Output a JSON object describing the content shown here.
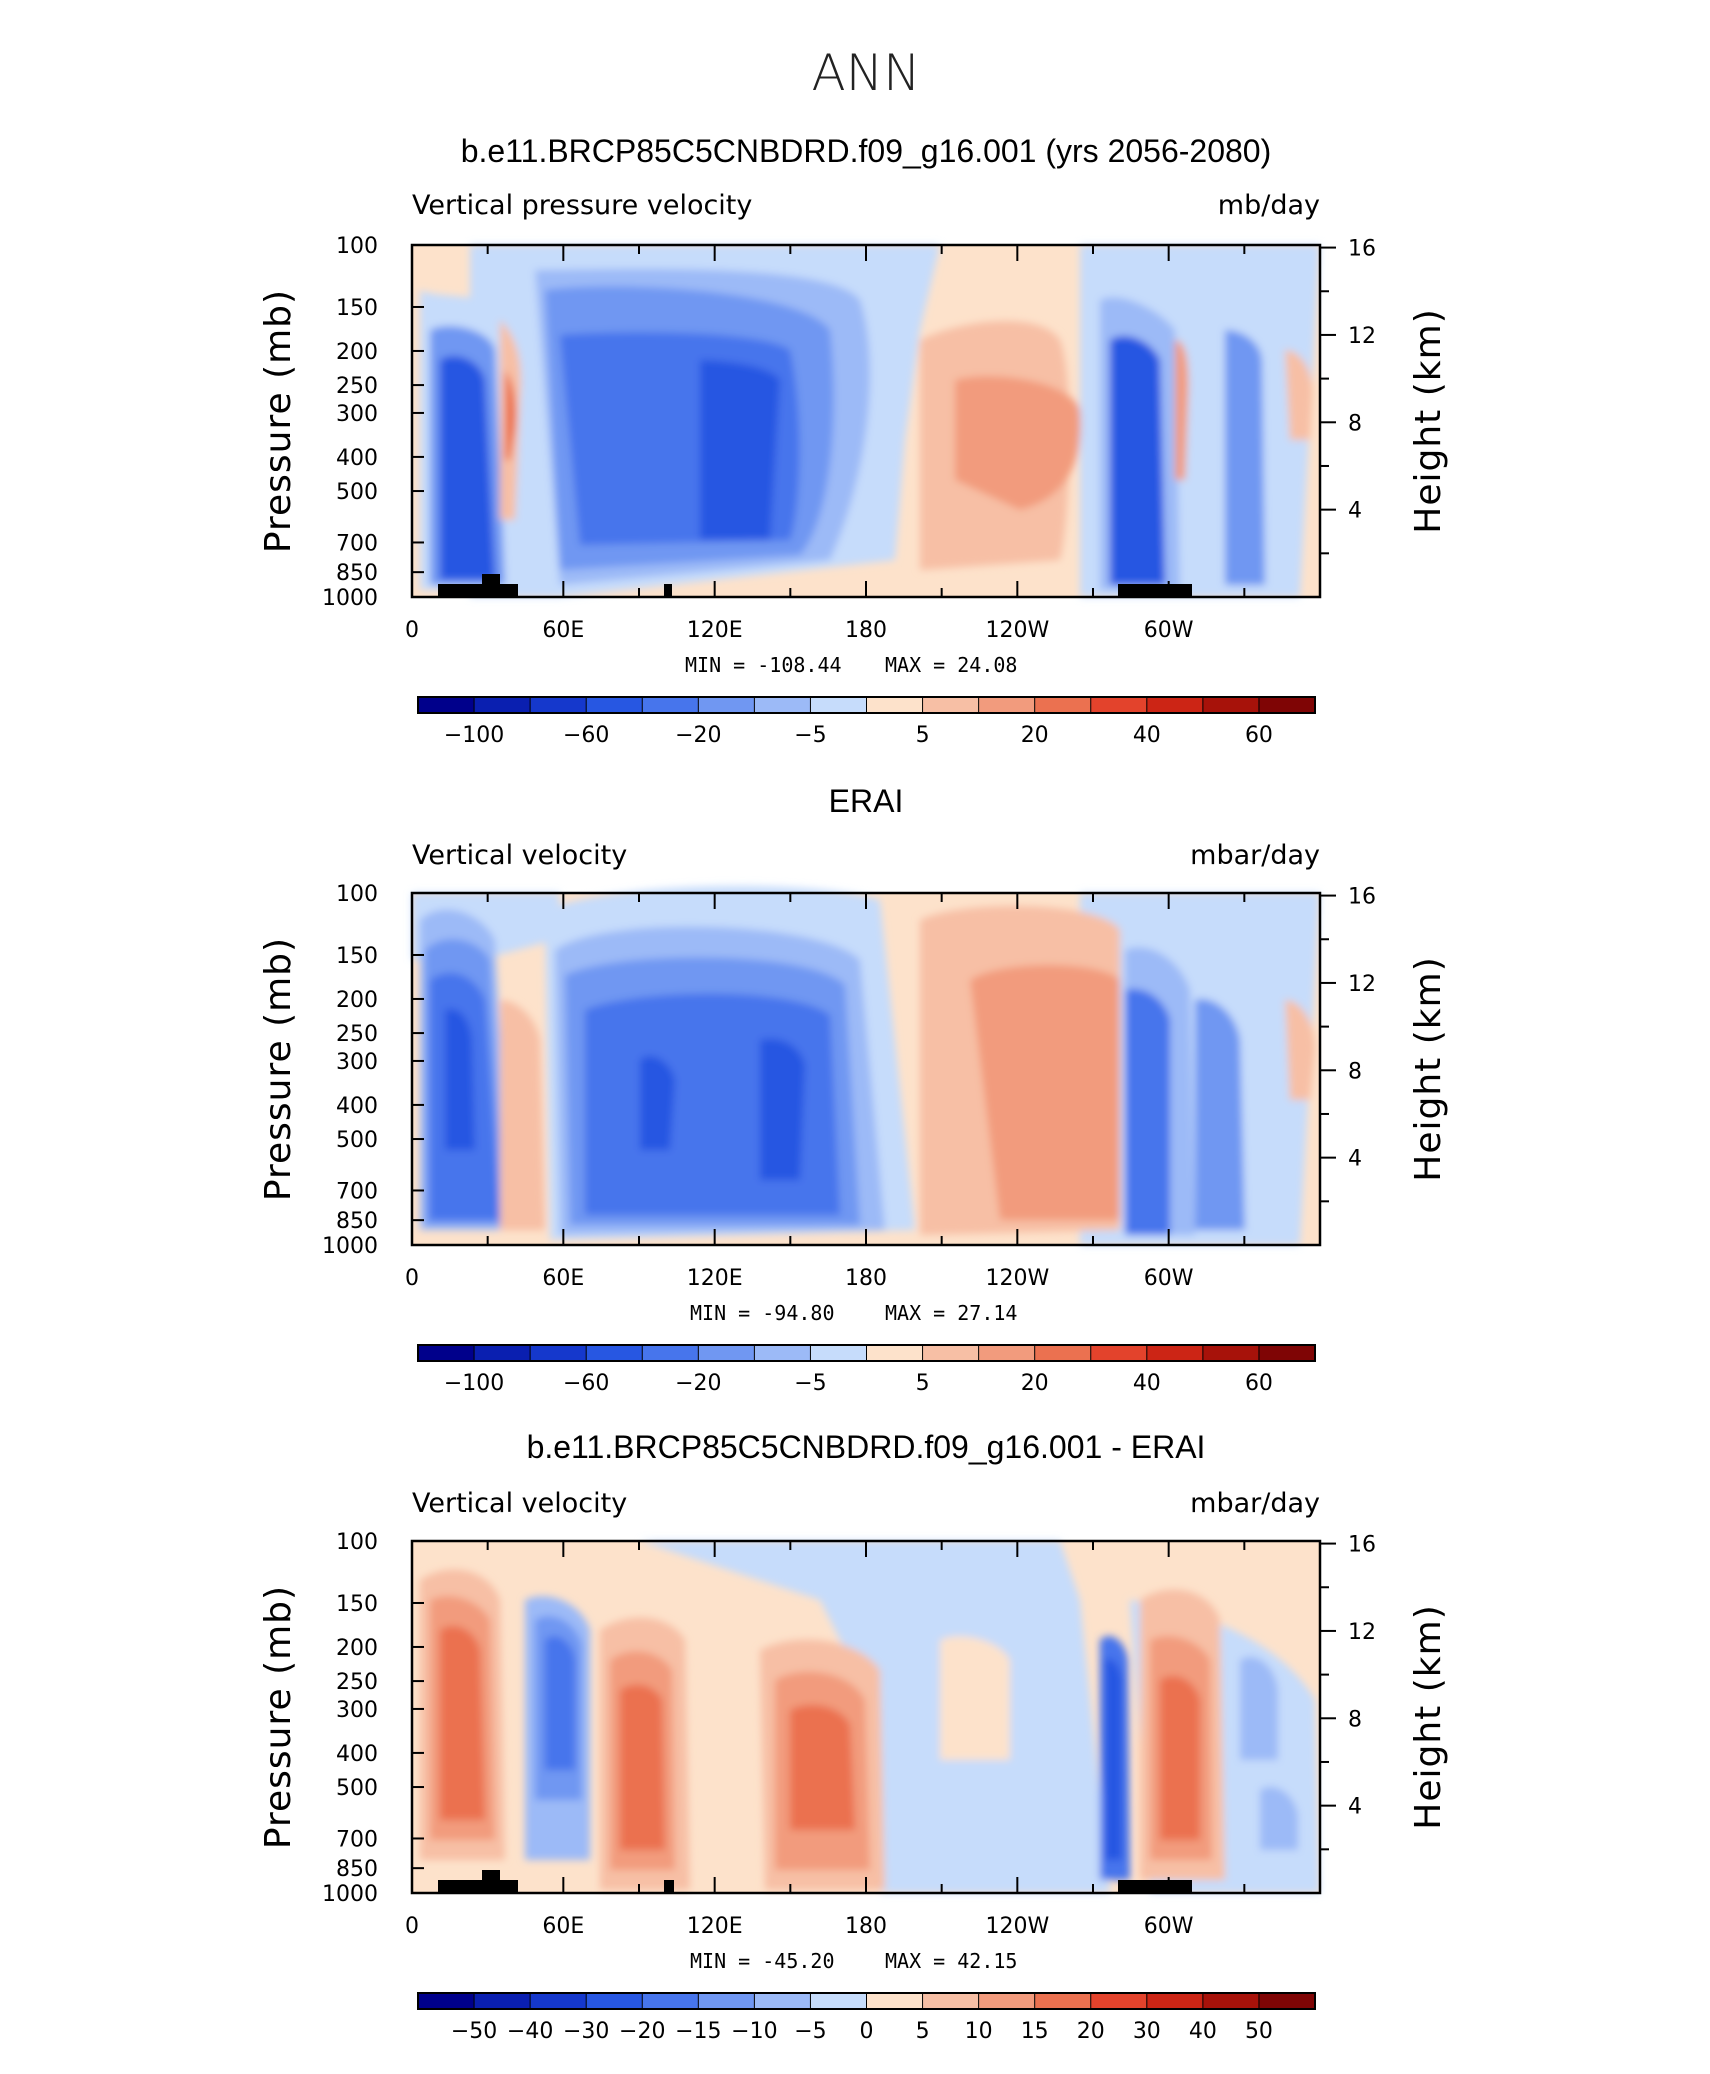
{
  "figure_title": "ANN",
  "chart_data": [
    {
      "type": "heatmap",
      "title": "b.e11.BRCP85C5CNBDRD.f09_g16.001 (yrs 2056-2080)",
      "left_label": "Vertical pressure velocity",
      "right_label": "mb/day",
      "xlabel": "",
      "ylabel": "Pressure (mb)",
      "ylabel_right": "Height (km)",
      "x_ticks": [
        "0",
        "60E",
        "120E",
        "180",
        "120W",
        "60W"
      ],
      "y_ticks": [
        "100",
        "150",
        "200",
        "250",
        "300",
        "400",
        "500",
        "700",
        "850",
        "1000"
      ],
      "y_ticks_right": [
        "16",
        "12",
        "8",
        "4"
      ],
      "min_label": "MIN = -108.44",
      "max_label": "MAX = 24.08",
      "min_value": -108.44,
      "max_value": 24.08,
      "colorbar_labels": [
        "-100",
        "-60",
        "-20",
        "-5",
        "5",
        "20",
        "40",
        "60"
      ],
      "colorbar_levels": [
        -120,
        -100,
        -80,
        -60,
        -40,
        -20,
        -10,
        -5,
        0,
        5,
        10,
        20,
        30,
        40,
        50,
        60
      ],
      "regions": [
        {
          "lon": 25,
          "p": 450,
          "value": -60
        },
        {
          "lon": 40,
          "p": 380,
          "value": 20
        },
        {
          "lon": 100,
          "p": 300,
          "value": -60
        },
        {
          "lon": 135,
          "p": 400,
          "value": -60
        },
        {
          "lon": 225,
          "p": 350,
          "value": 20
        },
        {
          "lon": 285,
          "p": 500,
          "value": -60
        },
        {
          "lon": 300,
          "p": 300,
          "value": 20
        }
      ]
    },
    {
      "type": "heatmap",
      "title": "ERAI",
      "left_label": "Vertical velocity",
      "right_label": "mbar/day",
      "xlabel": "",
      "ylabel": "Pressure (mb)",
      "ylabel_right": "Height (km)",
      "x_ticks": [
        "0",
        "60E",
        "120E",
        "180",
        "120W",
        "60W"
      ],
      "y_ticks": [
        "100",
        "150",
        "200",
        "250",
        "300",
        "400",
        "500",
        "700",
        "850",
        "1000"
      ],
      "y_ticks_right": [
        "16",
        "12",
        "8",
        "4"
      ],
      "min_label": "MIN = -94.80",
      "max_label": "MAX = 27.14",
      "min_value": -94.8,
      "max_value": 27.14,
      "colorbar_labels": [
        "-100",
        "-60",
        "-20",
        "-5",
        "5",
        "20",
        "40",
        "60"
      ],
      "colorbar_levels": [
        -120,
        -100,
        -80,
        -60,
        -40,
        -20,
        -10,
        -5,
        0,
        5,
        10,
        20,
        30,
        40,
        50,
        60
      ],
      "regions": [
        {
          "lon": 20,
          "p": 400,
          "value": -60
        },
        {
          "lon": 45,
          "p": 450,
          "value": 20
        },
        {
          "lon": 95,
          "p": 400,
          "value": -60
        },
        {
          "lon": 150,
          "p": 450,
          "value": -60
        },
        {
          "lon": 225,
          "p": 400,
          "value": 20
        },
        {
          "lon": 285,
          "p": 500,
          "value": -60
        }
      ]
    },
    {
      "type": "heatmap",
      "title": "b.e11.BRCP85C5CNBDRD.f09_g16.001 - ERAI",
      "left_label": "Vertical velocity",
      "right_label": "mbar/day",
      "xlabel": "",
      "ylabel": "Pressure (mb)",
      "ylabel_right": "Height (km)",
      "x_ticks": [
        "0",
        "60E",
        "120E",
        "180",
        "120W",
        "60W"
      ],
      "y_ticks": [
        "100",
        "150",
        "200",
        "250",
        "300",
        "400",
        "500",
        "700",
        "850",
        "1000"
      ],
      "y_ticks_right": [
        "16",
        "12",
        "8",
        "4"
      ],
      "min_label": "MIN = -45.20",
      "max_label": "MAX = 42.15",
      "min_value": -45.2,
      "max_value": 42.15,
      "colorbar_labels": [
        "-50",
        "-40",
        "-30",
        "-20",
        "-15",
        "-10",
        "-5",
        "0",
        "5",
        "10",
        "15",
        "20",
        "30",
        "40",
        "50"
      ],
      "colorbar_levels": [
        -60,
        -50,
        -40,
        -30,
        -20,
        -15,
        -10,
        -5,
        0,
        5,
        10,
        15,
        20,
        30,
        40,
        50
      ],
      "regions": [
        {
          "lon": 15,
          "p": 400,
          "value": 20
        },
        {
          "lon": 60,
          "p": 300,
          "value": -20
        },
        {
          "lon": 90,
          "p": 450,
          "value": 20
        },
        {
          "lon": 150,
          "p": 400,
          "value": 20
        },
        {
          "lon": 280,
          "p": 400,
          "value": -30
        },
        {
          "lon": 300,
          "p": 400,
          "value": 20
        },
        {
          "lon": 335,
          "p": 300,
          "value": -10
        }
      ]
    }
  ],
  "colors": {
    "negative": [
      "#00008b",
      "#0a1fb0",
      "#1538cc",
      "#2757e2",
      "#4775ec",
      "#7097f2",
      "#9cbaf7",
      "#c6dcfb"
    ],
    "positive": [
      "#fde2cb",
      "#f7bfa5",
      "#f29b7d",
      "#eb7150",
      "#e3432c",
      "#cc2515",
      "#a7120a",
      "#7f0505"
    ]
  }
}
